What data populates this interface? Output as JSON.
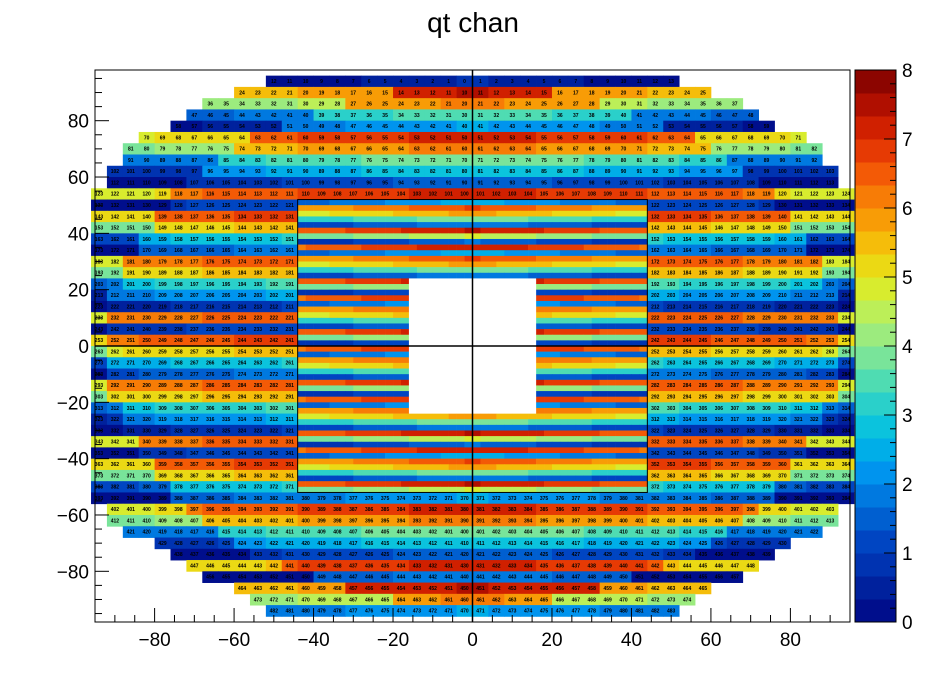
{
  "chart_data": {
    "type": "heatmap",
    "title": "qt chan",
    "xlabel": "",
    "ylabel": "",
    "xlim": [
      -95,
      95
    ],
    "ylim": [
      -98,
      98
    ],
    "x_ticks": [
      -80,
      -60,
      -40,
      -20,
      0,
      20,
      40,
      60,
      80
    ],
    "y_ticks": [
      -80,
      -60,
      -40,
      -20,
      0,
      20,
      40,
      60,
      80
    ],
    "colorbar": {
      "min": 0,
      "max": 8,
      "ticks": [
        0,
        1,
        2,
        3,
        4,
        5,
        6,
        7,
        8
      ]
    },
    "palette": [
      "#000e8c",
      "#00219d",
      "#0033b1",
      "#0045c2",
      "#005fd0",
      "#0079e0",
      "#0094ee",
      "#00aee8",
      "#0bc3dd",
      "#2ad0ca",
      "#4fdcb2",
      "#79e49a",
      "#9ceb7e",
      "#bcef58",
      "#d8ec2e",
      "#ebd914",
      "#f5bd0a",
      "#f89c06",
      "#f77c06",
      "#f35a06",
      "#e63a04",
      "#d02000",
      "#b00f00",
      "#8c0500"
    ],
    "outer_cell_size": 4,
    "inner_cell_size": 2,
    "outer_rows": [
      {
        "y": 96,
        "x": [
          -52,
          52
        ]
      },
      {
        "y": 92,
        "x": [
          -60,
          60
        ]
      },
      {
        "y": 88,
        "x": [
          -68,
          68
        ]
      },
      {
        "y": 84,
        "x": [
          -72,
          72
        ]
      },
      {
        "y": 80,
        "x": [
          -76,
          76
        ]
      },
      {
        "y": 76,
        "x": [
          -84,
          84
        ]
      },
      {
        "y": 72,
        "x": [
          -88,
          88
        ]
      },
      {
        "y": 68,
        "x": [
          -88,
          88
        ]
      },
      {
        "y": 64,
        "x": [
          -92,
          92
        ]
      },
      {
        "y": 60,
        "x": [
          -92,
          92
        ]
      },
      {
        "y": 56,
        "x": [
          -96,
          96
        ]
      },
      {
        "y": 52,
        "x": [
          -96,
          96
        ]
      },
      {
        "y": 48,
        "x": [
          -96,
          96
        ]
      },
      {
        "y": 44,
        "x": [
          -96,
          96
        ]
      },
      {
        "y": 40,
        "x": [
          -96,
          96
        ]
      },
      {
        "y": 36,
        "x": [
          -96,
          96
        ]
      },
      {
        "y": 32,
        "x": [
          -96,
          96
        ]
      },
      {
        "y": 28,
        "x": [
          -96,
          96
        ]
      },
      {
        "y": 24,
        "x": [
          -96,
          96
        ]
      },
      {
        "y": 20,
        "x": [
          -96,
          96
        ]
      },
      {
        "y": 16,
        "x": [
          -96,
          96
        ]
      },
      {
        "y": 12,
        "x": [
          -96,
          96
        ]
      },
      {
        "y": 8,
        "x": [
          -96,
          96
        ]
      },
      {
        "y": 4,
        "x": [
          -96,
          96
        ]
      },
      {
        "y": 0,
        "x": [
          -96,
          96
        ]
      },
      {
        "y": -4,
        "x": [
          -96,
          96
        ]
      },
      {
        "y": -8,
        "x": [
          -96,
          96
        ]
      },
      {
        "y": -12,
        "x": [
          -96,
          96
        ]
      },
      {
        "y": -16,
        "x": [
          -96,
          96
        ]
      },
      {
        "y": -20,
        "x": [
          -96,
          96
        ]
      },
      {
        "y": -24,
        "x": [
          -96,
          96
        ]
      },
      {
        "y": -28,
        "x": [
          -96,
          96
        ]
      },
      {
        "y": -32,
        "x": [
          -96,
          96
        ]
      },
      {
        "y": -36,
        "x": [
          -96,
          96
        ]
      },
      {
        "y": -40,
        "x": [
          -96,
          96
        ]
      },
      {
        "y": -44,
        "x": [
          -96,
          96
        ]
      },
      {
        "y": -48,
        "x": [
          -96,
          96
        ]
      },
      {
        "y": -52,
        "x": [
          -96,
          96
        ]
      },
      {
        "y": -56,
        "x": [
          -92,
          92
        ]
      },
      {
        "y": -60,
        "x": [
          -92,
          92
        ]
      },
      {
        "y": -64,
        "x": [
          -88,
          88
        ]
      },
      {
        "y": -68,
        "x": [
          -80,
          80
        ]
      },
      {
        "y": -72,
        "x": [
          -76,
          76
        ]
      },
      {
        "y": -76,
        "x": [
          -72,
          72
        ]
      },
      {
        "y": -80,
        "x": [
          -68,
          68
        ]
      },
      {
        "y": -84,
        "x": [
          -60,
          60
        ]
      },
      {
        "y": -88,
        "x": [
          -56,
          56
        ]
      },
      {
        "y": -92,
        "x": [
          -52,
          52
        ]
      }
    ],
    "outer_value_rows_top_to_bottom": [
      [
        6.6,
        7.0,
        7.1,
        7.1,
        7.2,
        7.3,
        7.4,
        7.5,
        7.6,
        7.7,
        7.8,
        7.9,
        7.9,
        7.8,
        7.7,
        7.6,
        7.5,
        7.4,
        7.3,
        7.2,
        7.1,
        7.1,
        7.0,
        6.6
      ],
      [
        1.2,
        1.2,
        1.3,
        1.4,
        1.5,
        1.6,
        1.7,
        1.8,
        1.9,
        2.0,
        2.1,
        2.2,
        2.2,
        2.1,
        2.0,
        1.9,
        1.8,
        1.7,
        1.6,
        1.5,
        1.4,
        1.3,
        1.2,
        1.2
      ],
      [
        0.9,
        6.5,
        6.6,
        6.8,
        7.0,
        7.1,
        7.2,
        7.3,
        7.4,
        7.5,
        7.6,
        7.7,
        7.7,
        7.6,
        7.5,
        7.4,
        7.3,
        7.2,
        7.1,
        7.0,
        6.8,
        6.6,
        6.5,
        0.9
      ],
      [
        5.1,
        5.2,
        5.5,
        5.8,
        5.9,
        6.0,
        6.0,
        6.1,
        6.1,
        6.2,
        6.2,
        6.2,
        6.2,
        6.2,
        6.2,
        6.1,
        6.1,
        6.0,
        6.0,
        5.9,
        5.8,
        5.5,
        5.2,
        5.1
      ],
      [
        1.3,
        1.8,
        2.2,
        2.6,
        3.0,
        3.2,
        3.4,
        3.5,
        3.6,
        3.7,
        3.7,
        3.8,
        3.8,
        3.7,
        3.7,
        3.6,
        3.5,
        3.4,
        3.2,
        3.0,
        2.6,
        2.2,
        1.8,
        1.3
      ],
      [
        0.7,
        0.9,
        1.2,
        1.5,
        1.8,
        2.0,
        2.2,
        2.4,
        2.5,
        2.6,
        2.7,
        2.7,
        2.7,
        2.7,
        2.6,
        2.5,
        2.4,
        2.2,
        2.0,
        1.8,
        1.5,
        1.2,
        0.9,
        0.7
      ],
      [
        1.2,
        6.3,
        6.5,
        6.6,
        6.7,
        6.8,
        6.9,
        7.0,
        7.0,
        7.1,
        7.1,
        7.1,
        7.1,
        7.1,
        7.1,
        7.0,
        7.0,
        6.9,
        6.8,
        6.7,
        6.6,
        6.5,
        6.3,
        1.2
      ],
      [
        5.0,
        5.3,
        5.5,
        5.6,
        5.7,
        5.8,
        5.8,
        5.9,
        5.9,
        5.9,
        6.0,
        6.0,
        6.0,
        6.0,
        5.9,
        5.9,
        5.9,
        5.8,
        5.8,
        5.7,
        5.6,
        5.5,
        5.3,
        5.0
      ],
      [
        2.7,
        3.0,
        3.2,
        3.4,
        3.5,
        3.6,
        3.7,
        3.7,
        3.8,
        3.8,
        3.8,
        3.8,
        3.8,
        3.8,
        3.8,
        3.8,
        3.7,
        3.7,
        3.6,
        3.5,
        3.4,
        3.2,
        3.0,
        2.7
      ],
      [
        1.8,
        2.0,
        2.2,
        2.4,
        2.5,
        2.6,
        2.7,
        2.7,
        2.8,
        2.8,
        2.8,
        2.8,
        2.8,
        2.8,
        2.8,
        2.8,
        2.7,
        2.7,
        2.6,
        2.5,
        2.4,
        2.2,
        2.0,
        1.8
      ],
      [
        0.6,
        0.8,
        0.9,
        1.0,
        1.1,
        1.2,
        1.3,
        1.3,
        1.4,
        1.4,
        1.4,
        1.4,
        1.4,
        1.4,
        1.4,
        1.4,
        1.3,
        1.3,
        1.2,
        1.1,
        1.0,
        0.9,
        0.8,
        0.6
      ]
    ],
    "inner_region": {
      "x": [
        -44,
        44
      ],
      "y": [
        -52,
        52
      ],
      "hole_x": [
        -16,
        16
      ],
      "hole_y": [
        -24,
        24
      ]
    },
    "cell_labels": {
      "outer_first_row": [
        "10",
        "9",
        "8",
        "7",
        "6",
        "5",
        "4",
        "3",
        "2",
        "1",
        "1",
        "2",
        "3",
        "4",
        "5",
        "6",
        "7",
        "8",
        "9",
        "10"
      ],
      "y80_row": [
        "64",
        "63",
        "62",
        "61",
        "60",
        "59",
        "58",
        "57",
        "56",
        "55",
        "54",
        "53",
        "52",
        "52",
        "53",
        "54",
        "55",
        "56",
        "57",
        "58",
        "59",
        "60",
        "61",
        "62",
        "63",
        "64"
      ]
    }
  }
}
